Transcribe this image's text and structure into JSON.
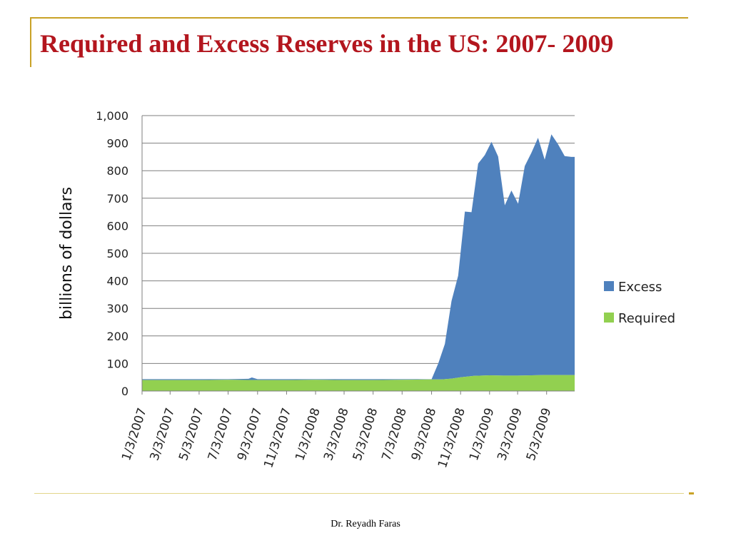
{
  "slide": {
    "title": "Required and Excess Reserves in the US: 2007- 2009",
    "footer": "Dr. Reyadh Faras",
    "accent_color": "#C9A227",
    "title_color": "#B3161E"
  },
  "chart_data": {
    "type": "area",
    "stacked": true,
    "title": "",
    "xlabel": "",
    "ylabel": "billions of dollars",
    "ylim": [
      0,
      1000
    ],
    "yticks": [
      0,
      100,
      200,
      300,
      400,
      500,
      600,
      700,
      800,
      900,
      1000
    ],
    "ytick_labels": [
      "0",
      "100",
      "200",
      "300",
      "400",
      "500",
      "600",
      "700",
      "800",
      "900",
      "1,000"
    ],
    "xlim": [
      "1/3/2007",
      "7/1/2009"
    ],
    "xtick_labels": [
      "1/3/2007",
      "3/3/2007",
      "5/3/2007",
      "7/3/2007",
      "9/3/2007",
      "11/3/2007",
      "1/3/2008",
      "3/3/2008",
      "5/3/2008",
      "7/3/2008",
      "9/3/2008",
      "11/3/2008",
      "1/3/2009",
      "3/3/2009",
      "5/3/2009"
    ],
    "grid": "horizontal",
    "legend_position": "right",
    "series": [
      {
        "name": "Required",
        "color": "#92D050",
        "points": [
          [
            "1/3/2007",
            40
          ],
          [
            "3/3/2007",
            40
          ],
          [
            "5/3/2007",
            40
          ],
          [
            "7/3/2007",
            41
          ],
          [
            "9/3/2007",
            40
          ],
          [
            "11/3/2007",
            40
          ],
          [
            "1/3/2008",
            41
          ],
          [
            "3/3/2008",
            40
          ],
          [
            "5/3/2008",
            40
          ],
          [
            "7/3/2008",
            41
          ],
          [
            "9/3/2008",
            42
          ],
          [
            "9/24/2008",
            42
          ],
          [
            "10/15/2008",
            45
          ],
          [
            "11/3/2008",
            50
          ],
          [
            "12/1/2008",
            55
          ],
          [
            "1/3/2009",
            57
          ],
          [
            "2/1/2009",
            56
          ],
          [
            "3/3/2009",
            56
          ],
          [
            "4/1/2009",
            57
          ],
          [
            "5/3/2009",
            58
          ],
          [
            "7/1/2009",
            58
          ]
        ]
      },
      {
        "name": "Excess",
        "color": "#4F81BD",
        "points": [
          [
            "1/3/2007",
            3
          ],
          [
            "3/3/2007",
            3
          ],
          [
            "5/3/2007",
            3
          ],
          [
            "7/3/2007",
            2
          ],
          [
            "8/15/2007",
            4
          ],
          [
            "8/22/2007",
            9
          ],
          [
            "9/3/2007",
            3
          ],
          [
            "11/3/2007",
            3
          ],
          [
            "1/3/2008",
            2
          ],
          [
            "3/3/2008",
            3
          ],
          [
            "5/3/2008",
            3
          ],
          [
            "7/3/2008",
            2
          ],
          [
            "9/3/2008",
            1
          ],
          [
            "9/17/2008",
            58
          ],
          [
            "10/1/2008",
            128
          ],
          [
            "10/15/2008",
            282
          ],
          [
            "10/29/2008",
            370
          ],
          [
            "11/12/2008",
            600
          ],
          [
            "11/26/2008",
            595
          ],
          [
            "12/10/2008",
            770
          ],
          [
            "12/24/2008",
            800
          ],
          [
            "1/7/2009",
            848
          ],
          [
            "1/21/2009",
            795
          ],
          [
            "2/4/2009",
            618
          ],
          [
            "2/18/2009",
            672
          ],
          [
            "3/4/2009",
            624
          ],
          [
            "3/18/2009",
            760
          ],
          [
            "4/1/2009",
            808
          ],
          [
            "4/15/2009",
            862
          ],
          [
            "4/29/2009",
            782
          ],
          [
            "5/13/2009",
            874
          ],
          [
            "5/27/2009",
            838
          ],
          [
            "6/10/2009",
            795
          ],
          [
            "6/24/2009",
            792
          ],
          [
            "7/1/2009",
            792
          ]
        ]
      }
    ]
  }
}
